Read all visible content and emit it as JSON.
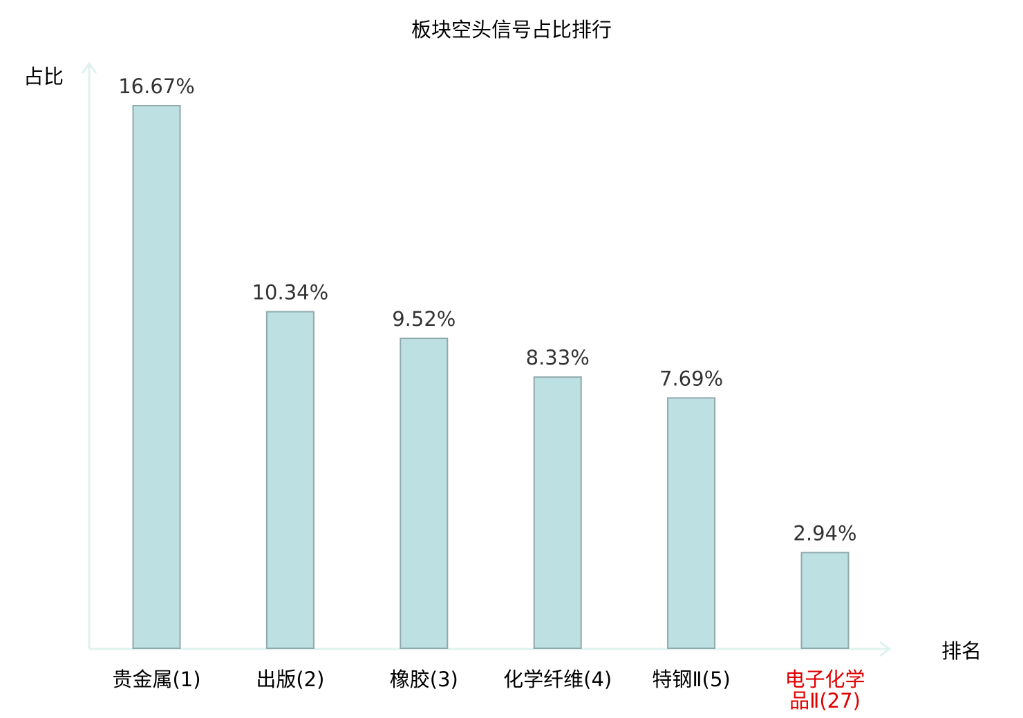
{
  "chart_data": {
    "type": "bar",
    "title": "板块空头信号占比排行",
    "ylabel": "占比",
    "xlabel": "排名",
    "categories": [
      "贵金属(1)",
      "出版(2)",
      "橡胶(3)",
      "化学纤维(4)",
      "特钢Ⅱ(5)",
      "电子化学品Ⅱ(27)"
    ],
    "category_label_lines": [
      [
        "贵金属(1)"
      ],
      [
        "出版(2)"
      ],
      [
        "橡胶(3)"
      ],
      [
        "化学纤维(4)"
      ],
      [
        "特钢Ⅱ(5)"
      ],
      [
        "电子化学",
        "品Ⅱ(27)"
      ]
    ],
    "values": [
      16.67,
      10.34,
      9.52,
      8.33,
      7.69,
      2.94
    ],
    "data_labels": [
      "16.67%",
      "10.34%",
      "9.52%",
      "8.33%",
      "7.69%",
      "2.94%"
    ],
    "unit": "%",
    "ylim": [
      0,
      20
    ],
    "grid": false,
    "highlight_index": 5,
    "colors": {
      "bar_fill": "#bde0e3",
      "bar_stroke": "#8fa9ab",
      "axis": "#dff2ef",
      "text": "#000000",
      "value_text": "#333333",
      "highlight_text": "#e00000"
    }
  }
}
